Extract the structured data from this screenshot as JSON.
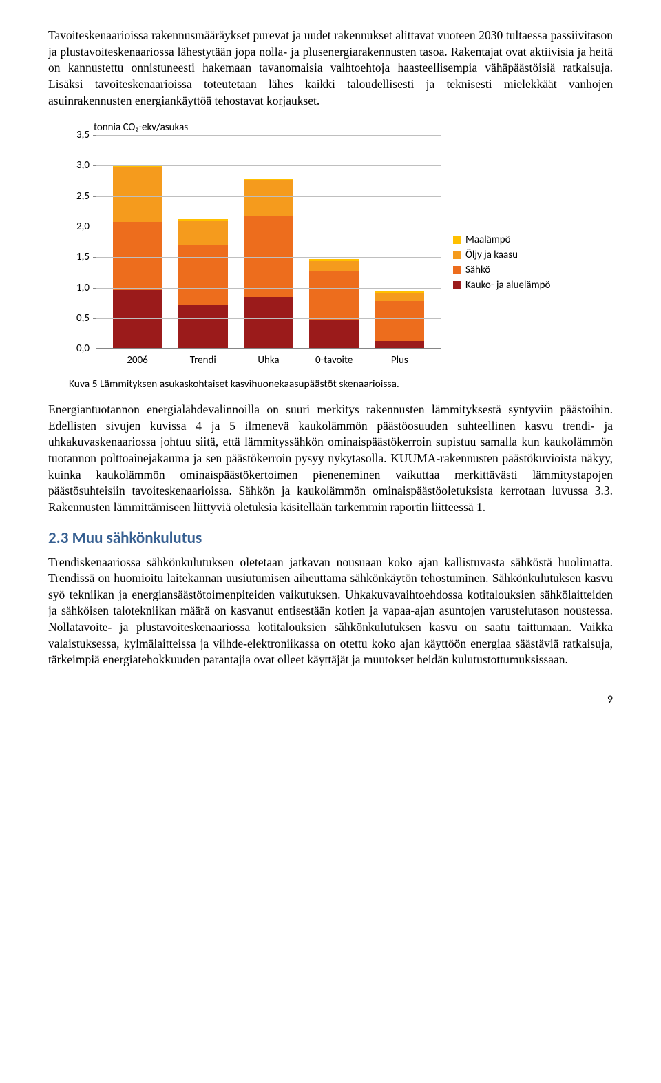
{
  "paragraphs": {
    "p1": "Tavoiteskenaarioissa rakennusmääräykset purevat ja uudet rakennukset alittavat vuoteen 2030 tultaessa passiivitason ja plustavoiteskenaariossa lähestytään jopa nolla- ja plusenergiarakennusten tasoa. Rakentajat ovat aktiivisia ja heitä on kannustettu onnistuneesti hakemaan tavanomaisia vaihtoehtoja haasteellisempia vähäpäästöisiä ratkaisuja. Lisäksi tavoiteskenaarioissa toteutetaan lähes kaikki taloudellisesti ja teknisesti mielekkäät vanhojen asuinrakennusten energiankäyttöä tehostavat korjaukset.",
    "p2": "Energiantuotannon energialähdevalinnoilla on suuri merkitys rakennusten lämmityksestä syntyviin päästöihin. Edellisten sivujen kuvissa 4 ja 5 ilmenevä kaukolämmön päästöosuuden suhteellinen kasvu trendi- ja uhkakuvaskenaariossa johtuu siitä, että lämmityssähkön ominaispäästökerroin supistuu samalla kun kaukolämmön tuotannon polttoainejakauma ja sen päästökerroin pysyy nykytasolla. KUUMA-rakennusten päästökuvioista näkyy, kuinka kaukolämmön ominaispäästökertoimen pieneneminen vaikuttaa merkittävästi lämmitystapojen päästösuhteisiin tavoiteskenaarioissa. Sähkön ja kaukolämmön ominaispäästöoletuksista kerrotaan luvussa 3.3. Rakennusten lämmittämiseen liittyviä oletuksia käsitellään tarkemmin raportin liitteessä 1.",
    "p3": "Trendiskenaariossa sähkönkulutuksen oletetaan jatkavan nousuaan koko ajan kallistuvasta sähköstä huolimatta. Trendissä on huomioitu laitekannan uusiutumisen aiheuttama sähkönkäytön tehostuminen. Sähkönkulutuksen kasvu syö tekniikan ja energiansäästötoimenpiteiden vaikutuksen. Uhkakuvavaihtoehdossa kotitalouksien sähkölaitteiden ja sähköisen talotekniikan määrä on kasvanut entisestään kotien ja vapaa-ajan asuntojen varustelutason noustessa. Nollatavoite- ja plustavoiteskenaariossa kotitalouksien sähkönkulutuksen kasvu on saatu taittumaan. Vaikka valaistuksessa, kylmälaitteissa ja viihde-elektroniikassa on otettu koko ajan käyttöön energiaa säästäviä ratkaisuja, tärkeimpiä energiatehokkuuden parantajia ovat olleet käyttäjät ja muutokset heidän kulutustottumuksissaan."
  },
  "heading": "2.3 Muu sähkönkulutus",
  "caption": "Kuva 5 Lämmityksen asukaskohtaiset kasvihuonekaasupäästöt skenaarioissa.",
  "page_number": "9",
  "chart": {
    "type": "stacked-bar",
    "y_title": "tonnia CO₂-ekv/asukas",
    "y_min": 0,
    "y_max": 3.5,
    "y_ticks": [
      "0,0",
      "0,5",
      "1,0",
      "1,5",
      "2,0",
      "2,5",
      "3,0",
      "3,5"
    ],
    "categories": [
      "2006",
      "Trendi",
      "Uhka",
      "0-tavoite",
      "Plus"
    ],
    "series": [
      {
        "name": "Kauko- ja aluelämpö",
        "color": "#9b1b1b"
      },
      {
        "name": "Sähkö",
        "color": "#ed6d1d"
      },
      {
        "name": "Öljy ja kaasu",
        "color": "#f59b1d"
      },
      {
        "name": "Maalämpö",
        "color": "#ffc000"
      }
    ],
    "legend_order": [
      "Maalämpö",
      "Öljy ja kaasu",
      "Sähkö",
      "Kauko- ja aluelämpö"
    ],
    "data": {
      "2006": {
        "Kauko- ja aluelämpö": 0.95,
        "Sähkö": 1.12,
        "Öljy ja kaasu": 0.9,
        "Maalämpö": 0.02
      },
      "Trendi": {
        "Kauko- ja aluelämpö": 0.7,
        "Sähkö": 1.0,
        "Öljy ja kaasu": 0.38,
        "Maalämpö": 0.03
      },
      "Uhka": {
        "Kauko- ja aluelämpö": 0.84,
        "Sähkö": 1.32,
        "Öljy ja kaasu": 0.58,
        "Maalämpö": 0.03
      },
      "0-tavoite": {
        "Kauko- ja aluelämpö": 0.45,
        "Sähkö": 0.8,
        "Öljy ja kaasu": 0.18,
        "Maalämpö": 0.03
      },
      "Plus": {
        "Kauko- ja aluelämpö": 0.12,
        "Sähkö": 0.65,
        "Öljy ja kaasu": 0.13,
        "Maalämpö": 0.03
      }
    },
    "grid_color": "#bfbfbf",
    "axis_color": "#868686",
    "background": "#ffffff"
  }
}
